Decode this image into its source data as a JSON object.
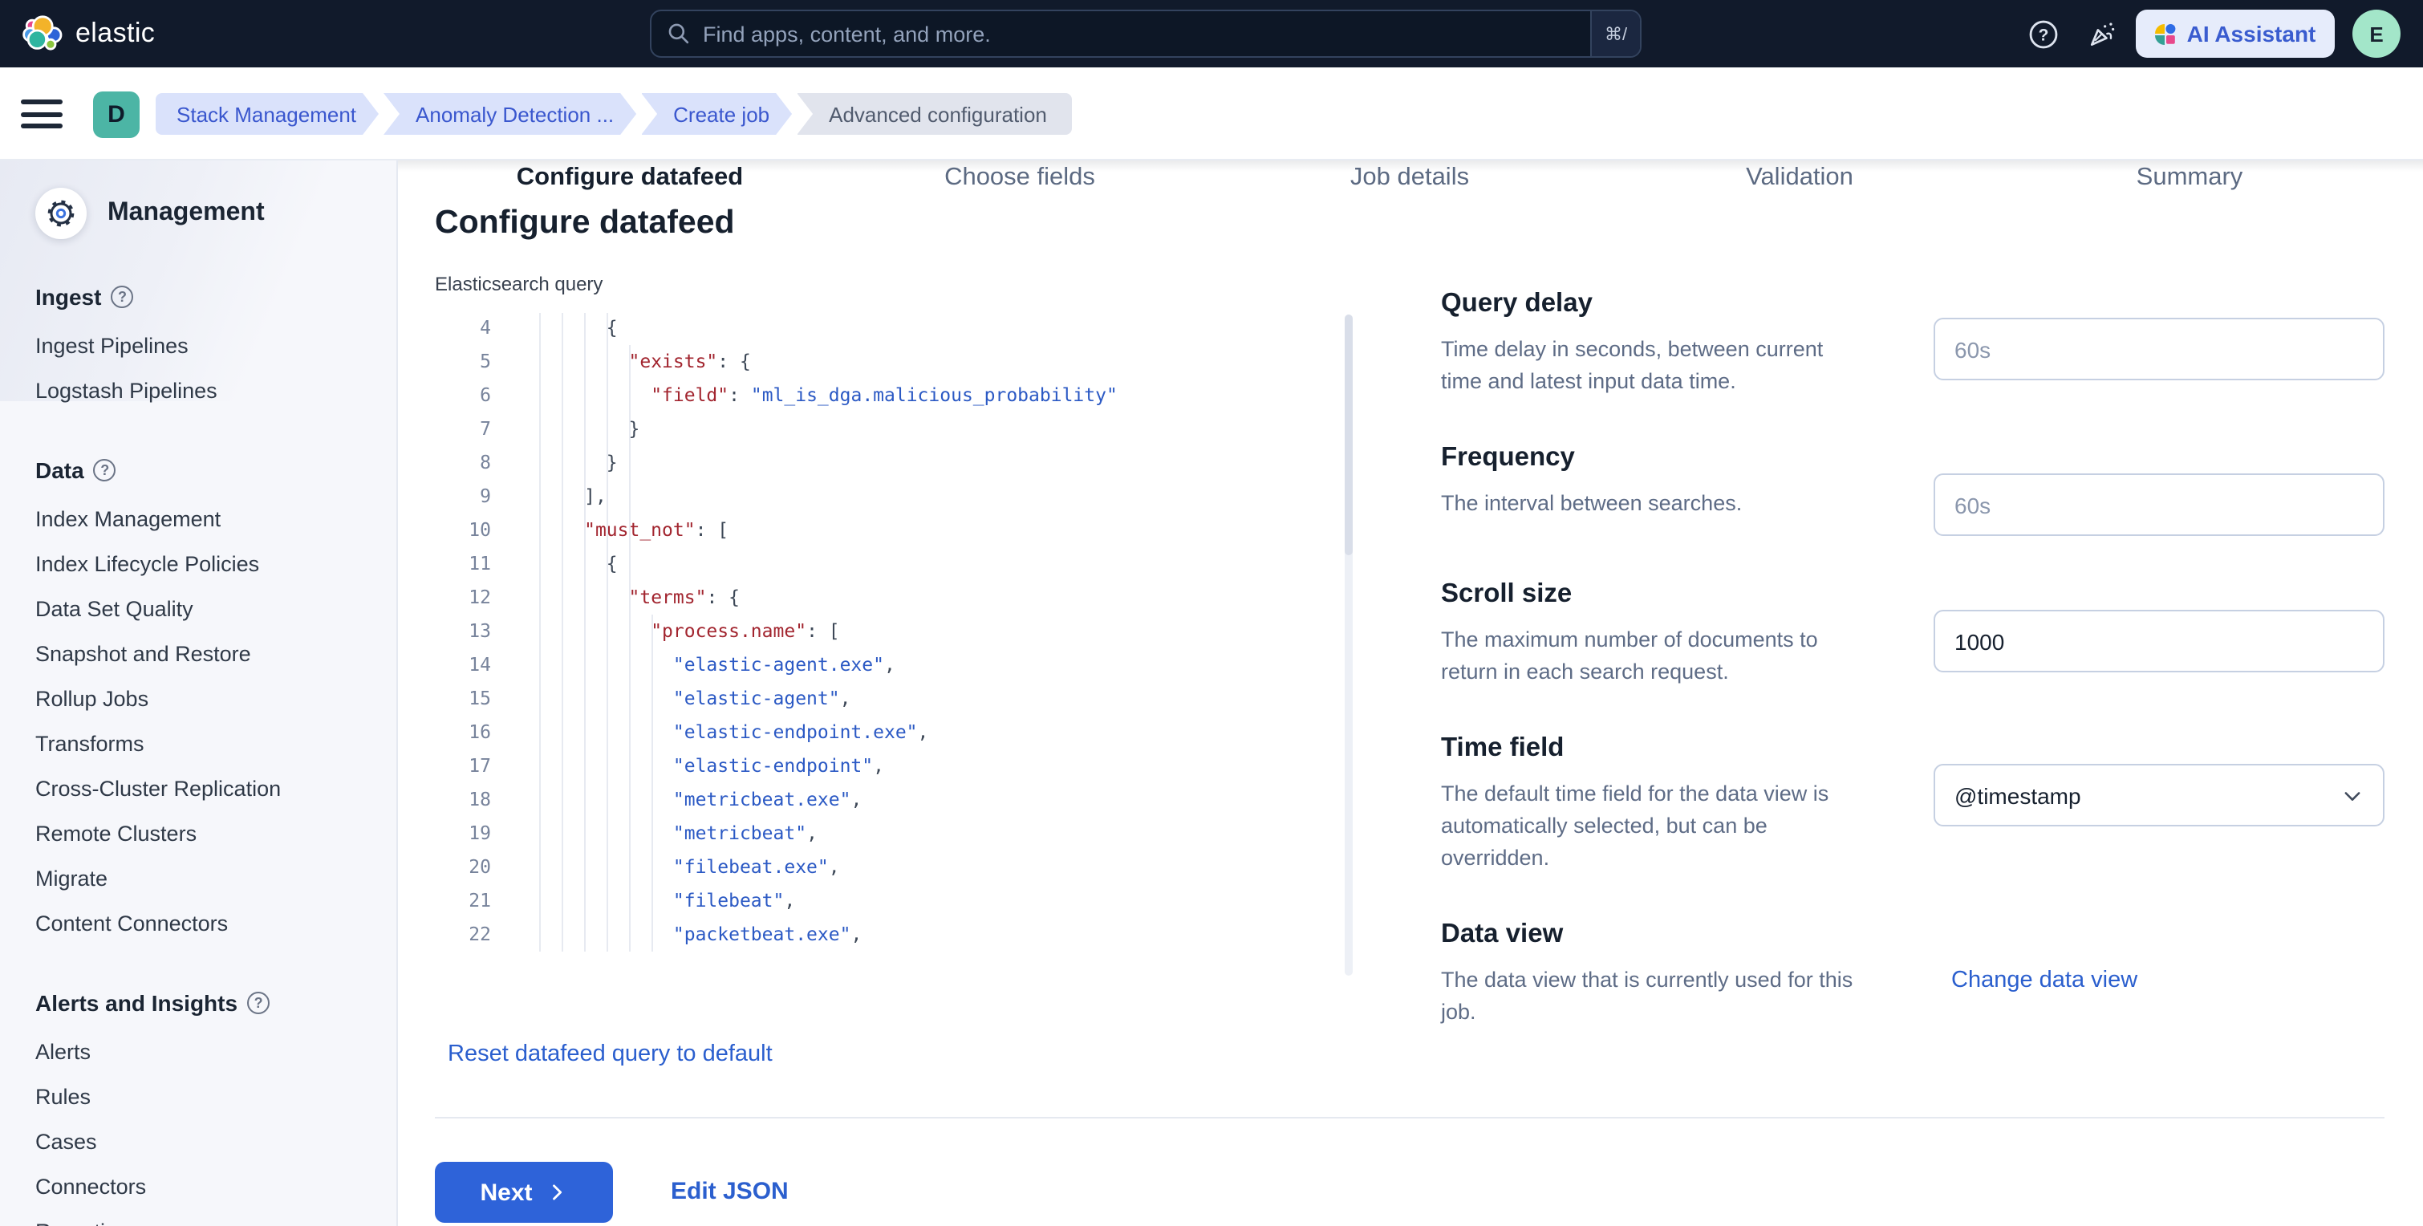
{
  "topbar": {
    "brand": "elastic",
    "search_placeholder": "Find apps, content, and more.",
    "search_shortcut": "⌘/",
    "ai_assistant_label": "AI Assistant",
    "avatar_initial": "E"
  },
  "breadcrumbs": {
    "menu_badge": "D",
    "items": [
      {
        "label": "Stack Management",
        "style": "link"
      },
      {
        "label": "Anomaly Detection ...",
        "style": "link"
      },
      {
        "label": "Create job",
        "style": "link"
      },
      {
        "label": "Advanced configuration",
        "style": "current"
      }
    ]
  },
  "wizard": {
    "steps": [
      {
        "label": "Configure datafeed",
        "active": true
      },
      {
        "label": "Choose fields",
        "active": false
      },
      {
        "label": "Job details",
        "active": false
      },
      {
        "label": "Validation",
        "active": false
      },
      {
        "label": "Summary",
        "active": false
      }
    ]
  },
  "sidebar": {
    "heading": "Management",
    "sections": [
      {
        "heading": "Ingest",
        "items": [
          "Ingest Pipelines",
          "Logstash Pipelines"
        ]
      },
      {
        "heading": "Data",
        "items": [
          "Index Management",
          "Index Lifecycle Policies",
          "Data Set Quality",
          "Snapshot and Restore",
          "Rollup Jobs",
          "Transforms",
          "Cross-Cluster Replication",
          "Remote Clusters",
          "Migrate",
          "Content Connectors"
        ]
      },
      {
        "heading": "Alerts and Insights",
        "items": [
          "Alerts",
          "Rules",
          "Cases",
          "Connectors",
          "Reporting"
        ]
      }
    ]
  },
  "page": {
    "title": "Configure datafeed"
  },
  "editor": {
    "label": "Elasticsearch query",
    "lines": [
      {
        "n": 4,
        "sp": 8,
        "t": [
          [
            "p",
            "{"
          ]
        ]
      },
      {
        "n": 5,
        "sp": 10,
        "t": [
          [
            "k",
            "\"exists\""
          ],
          [
            "p",
            ": {"
          ]
        ]
      },
      {
        "n": 6,
        "sp": 12,
        "t": [
          [
            "k",
            "\"field\""
          ],
          [
            "p",
            ": "
          ],
          [
            "s",
            "\"ml_is_dga.malicious_probability\""
          ]
        ]
      },
      {
        "n": 7,
        "sp": 10,
        "t": [
          [
            "p",
            "}"
          ]
        ]
      },
      {
        "n": 8,
        "sp": 8,
        "t": [
          [
            "p",
            "}"
          ]
        ]
      },
      {
        "n": 9,
        "sp": 6,
        "t": [
          [
            "p",
            "],"
          ]
        ]
      },
      {
        "n": 10,
        "sp": 6,
        "t": [
          [
            "k",
            "\"must_not\""
          ],
          [
            "p",
            ": ["
          ]
        ]
      },
      {
        "n": 11,
        "sp": 8,
        "t": [
          [
            "p",
            "{"
          ]
        ]
      },
      {
        "n": 12,
        "sp": 10,
        "t": [
          [
            "k",
            "\"terms\""
          ],
          [
            "p",
            ": {"
          ]
        ]
      },
      {
        "n": 13,
        "sp": 12,
        "t": [
          [
            "k",
            "\"process.name\""
          ],
          [
            "p",
            ": ["
          ]
        ]
      },
      {
        "n": 14,
        "sp": 14,
        "t": [
          [
            "s",
            "\"elastic-agent.exe\""
          ],
          [
            "p",
            ","
          ]
        ]
      },
      {
        "n": 15,
        "sp": 14,
        "t": [
          [
            "s",
            "\"elastic-agent\""
          ],
          [
            "p",
            ","
          ]
        ]
      },
      {
        "n": 16,
        "sp": 14,
        "t": [
          [
            "s",
            "\"elastic-endpoint.exe\""
          ],
          [
            "p",
            ","
          ]
        ]
      },
      {
        "n": 17,
        "sp": 14,
        "t": [
          [
            "s",
            "\"elastic-endpoint\""
          ],
          [
            "p",
            ","
          ]
        ]
      },
      {
        "n": 18,
        "sp": 14,
        "t": [
          [
            "s",
            "\"metricbeat.exe\""
          ],
          [
            "p",
            ","
          ]
        ]
      },
      {
        "n": 19,
        "sp": 14,
        "t": [
          [
            "s",
            "\"metricbeat\""
          ],
          [
            "p",
            ","
          ]
        ]
      },
      {
        "n": 20,
        "sp": 14,
        "t": [
          [
            "s",
            "\"filebeat.exe\""
          ],
          [
            "p",
            ","
          ]
        ]
      },
      {
        "n": 21,
        "sp": 14,
        "t": [
          [
            "s",
            "\"filebeat\""
          ],
          [
            "p",
            ","
          ]
        ]
      },
      {
        "n": 22,
        "sp": 14,
        "t": [
          [
            "s",
            "\"packetbeat.exe\""
          ],
          [
            "p",
            ","
          ]
        ]
      }
    ]
  },
  "form": {
    "query_delay": {
      "heading": "Query delay",
      "desc": "Time delay in seconds, between current time and latest input data time.",
      "placeholder": "60s"
    },
    "frequency": {
      "heading": "Frequency",
      "desc": "The interval between searches.",
      "placeholder": "60s"
    },
    "scroll_size": {
      "heading": "Scroll size",
      "desc": "The maximum number of documents to return in each search request.",
      "value": "1000"
    },
    "time_field": {
      "heading": "Time field",
      "desc": "The default time field for the data view is automatically selected, but can be overridden.",
      "value": "@timestamp"
    },
    "data_view": {
      "heading": "Data view",
      "desc": "The data view that is currently used for this job.",
      "link": "Change data view"
    }
  },
  "actions": {
    "reset_link": "Reset datafeed query to default",
    "next": "Next",
    "edit_json": "Edit JSON"
  },
  "colors": {
    "topbar_bg": "#111a2b",
    "primary_button": "#2e63d9",
    "link_blue": "#2b5fce",
    "breadcrumb_blue_bg": "#dae2fb",
    "breadcrumb_blue_text": "#3a57ce",
    "badge_teal": "#4cb5a5",
    "code_key": "#a2252f",
    "code_string": "#2b59c4",
    "sidebar_bg": "#f6f7fb"
  }
}
